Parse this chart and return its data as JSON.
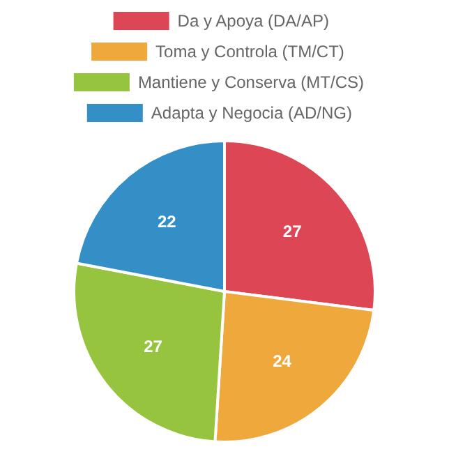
{
  "chart_data": {
    "type": "pie",
    "categories": [
      "Da y Apoya (DA/AP)",
      "Toma y Controla (TM/CT)",
      "Mantiene y Conserva (MT/CS)",
      "Adapta y Negocia (AD/NG)"
    ],
    "values": [
      27,
      24,
      27,
      22
    ],
    "colors": [
      "#dc4655",
      "#eea83c",
      "#97c43f",
      "#348fc7"
    ],
    "data_labels": true,
    "legend": "top"
  }
}
